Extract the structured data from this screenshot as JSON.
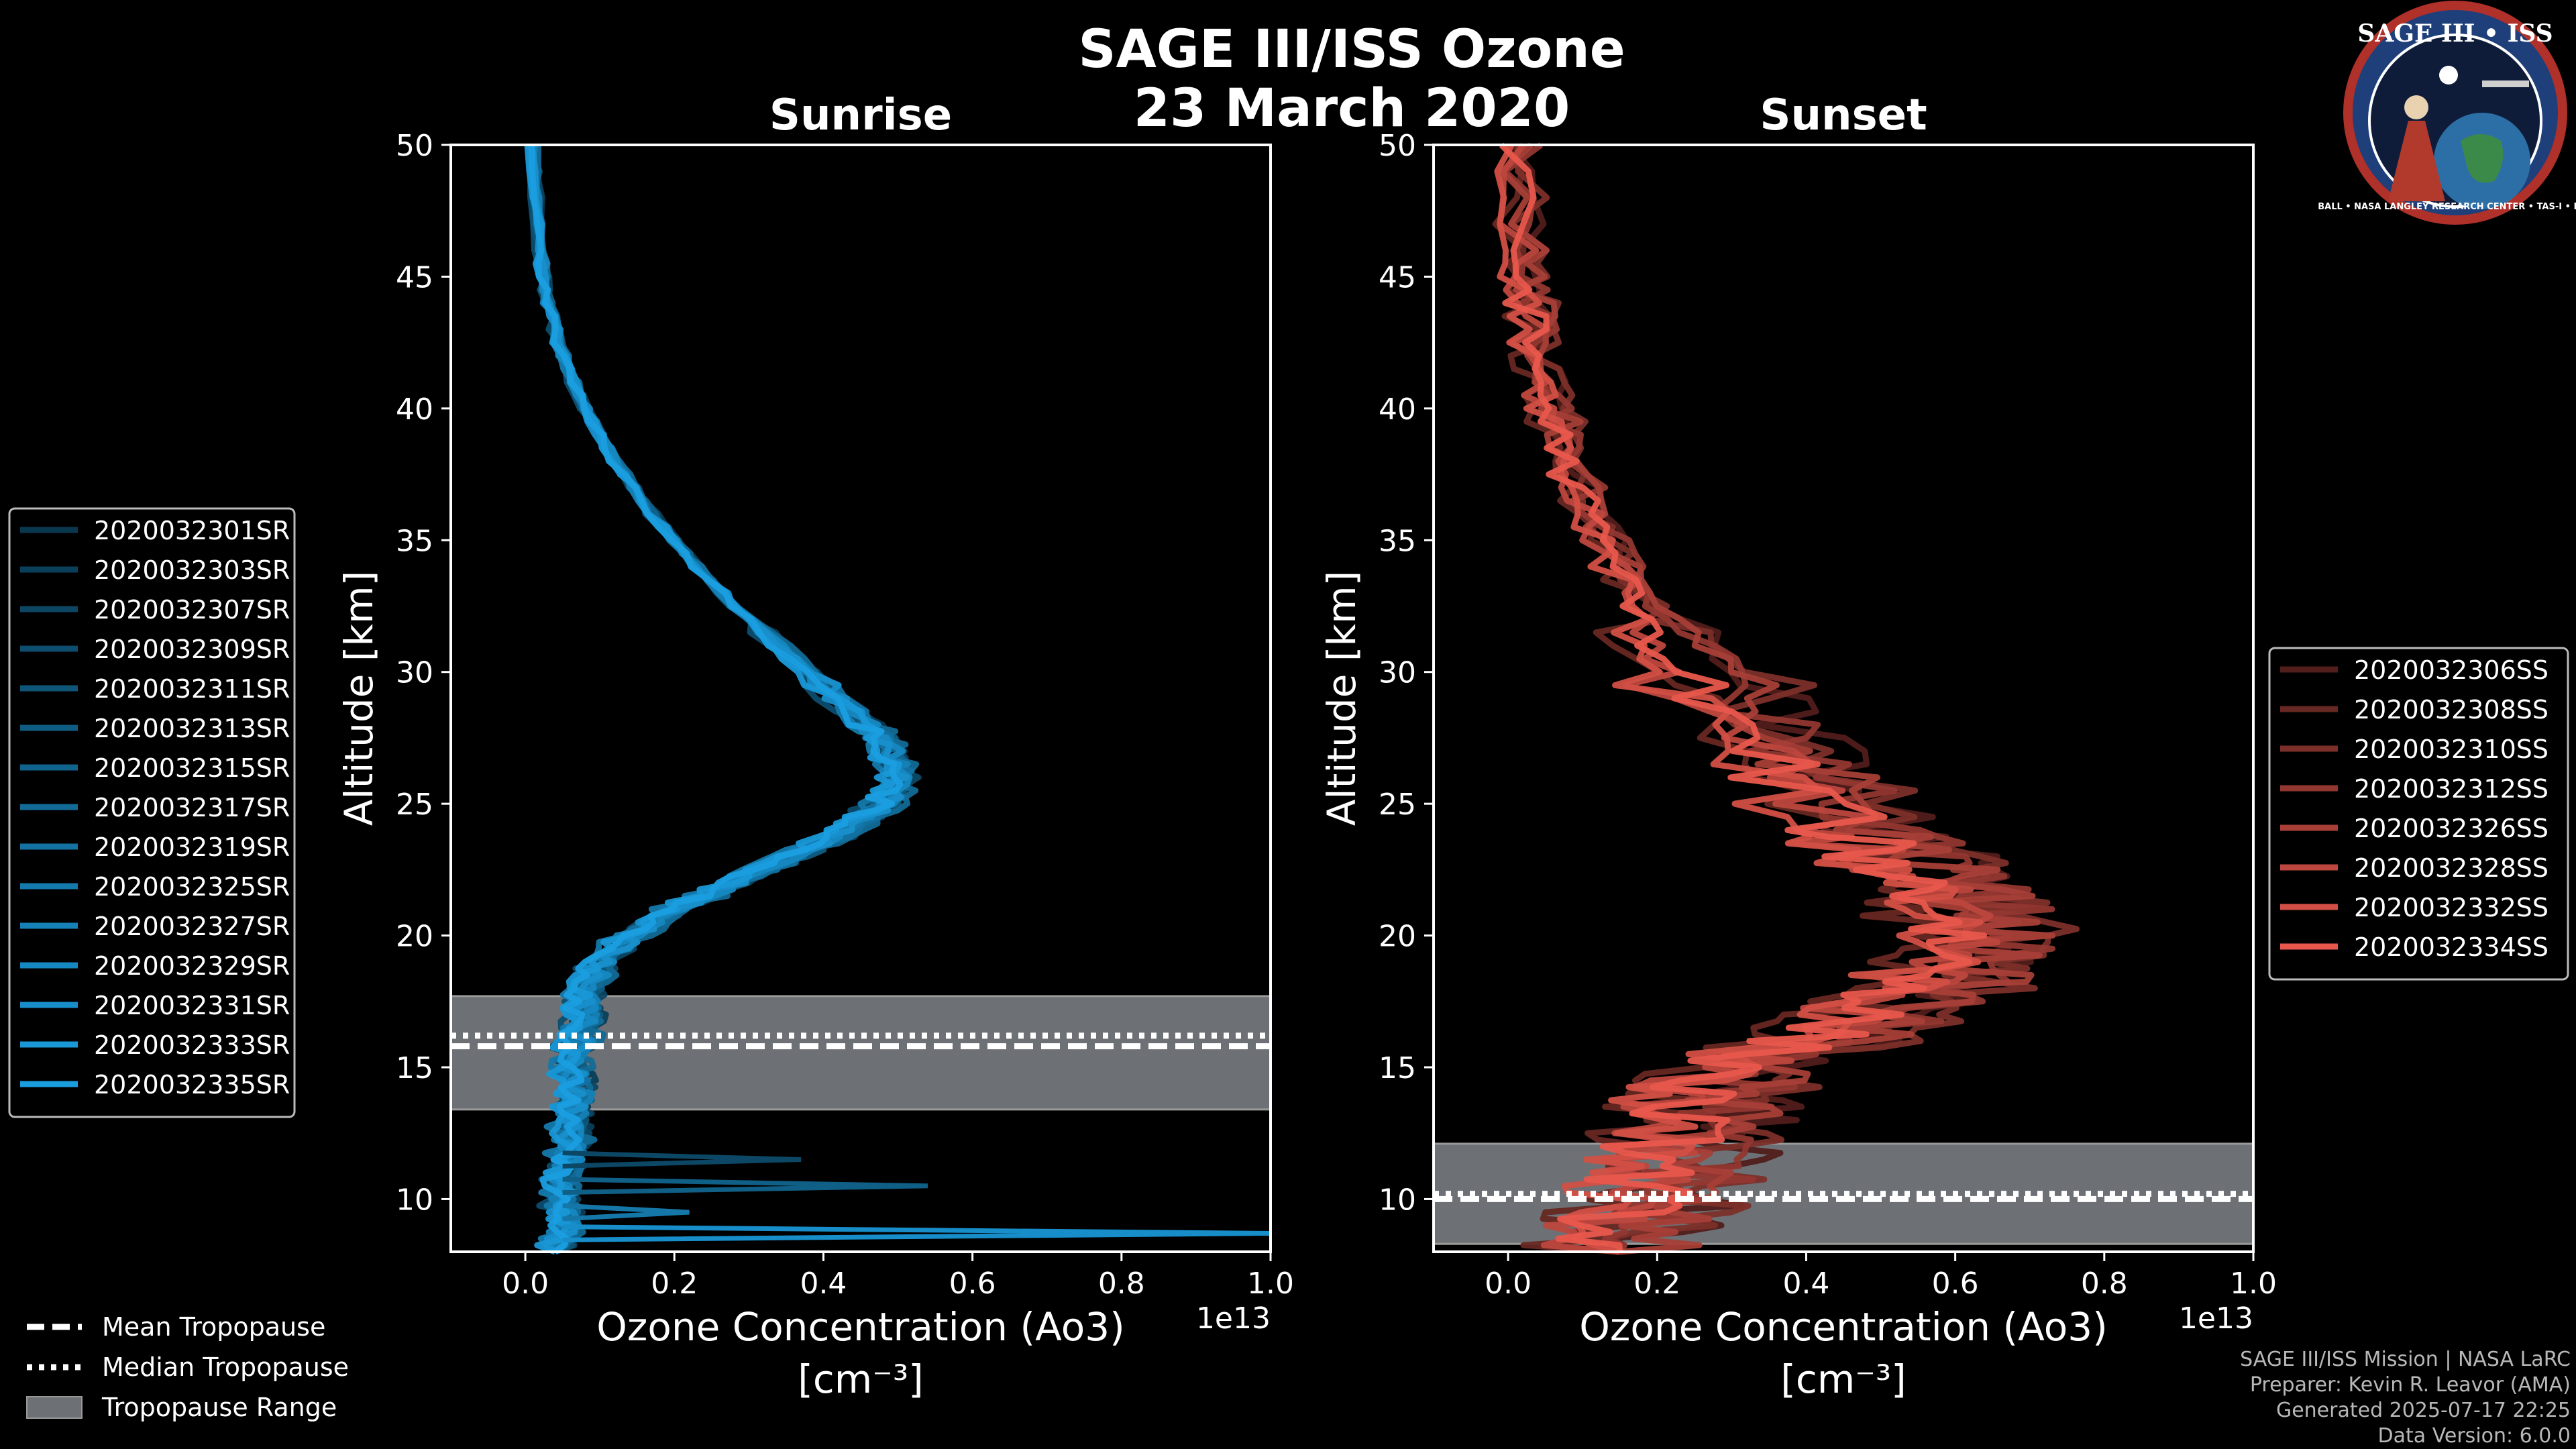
{
  "title": "SAGE III/ISS Ozone",
  "date": "23 March 2020",
  "logo": {
    "text": "SAGE III • ISS",
    "ring_text": "BALL • NASA LANGLEY RESEARCH CENTER • TAS-I • ESA"
  },
  "footer": {
    "line1": "SAGE III/ISS Mission | NASA LaRC",
    "line2": "Preparer: Kevin R. Leavor (AMA)",
    "line3": "Generated 2025-07-17 22:25",
    "line4": "Data Version: 6.0.0"
  },
  "tropopause_legend": {
    "mean": "Mean Tropopause",
    "median": "Median Tropopause",
    "range": "Tropopause Range"
  },
  "colors": {
    "sunrise": "#1a9ee0",
    "sunset": "#e8574c",
    "tropo_fill": "#6d7074",
    "background": "#000000"
  },
  "chart_data": [
    {
      "type": "line",
      "title": "Sunrise",
      "xlabel": "Ozone Concentration (Ao3)",
      "xunit": "[cm⁻³]",
      "xscale": "1e13",
      "ylabel": "Altitude [km]",
      "xlim": [
        -0.1,
        1.0
      ],
      "ylim": [
        8,
        50
      ],
      "xticks": [
        "0.0",
        "0.2",
        "0.4",
        "0.6",
        "0.8",
        "1.0"
      ],
      "yticks": [
        "10",
        "15",
        "20",
        "25",
        "30",
        "35",
        "40",
        "45",
        "50"
      ],
      "legend_position": "left",
      "series_names": [
        "2020032301SR",
        "2020032303SR",
        "2020032307SR",
        "2020032309SR",
        "2020032311SR",
        "2020032313SR",
        "2020032315SR",
        "2020032317SR",
        "2020032319SR",
        "2020032325SR",
        "2020032327SR",
        "2020032329SR",
        "2020032331SR",
        "2020032333SR",
        "2020032335SR"
      ],
      "base_profile": {
        "altitude": [
          50,
          46,
          44,
          42,
          40,
          38,
          36,
          34,
          32,
          30,
          28,
          27,
          26,
          25,
          24,
          23,
          22,
          21,
          20,
          19,
          18,
          17,
          16,
          15,
          14,
          13,
          12,
          11,
          10,
          9,
          8
        ],
        "ozone": [
          0.01,
          0.02,
          0.03,
          0.05,
          0.08,
          0.12,
          0.17,
          0.23,
          0.3,
          0.38,
          0.46,
          0.49,
          0.5,
          0.48,
          0.43,
          0.36,
          0.28,
          0.2,
          0.14,
          0.1,
          0.08,
          0.08,
          0.07,
          0.06,
          0.07,
          0.06,
          0.06,
          0.05,
          0.05,
          0.05,
          0.04
        ]
      },
      "spikes": [
        {
          "altitude": 11.5,
          "ozone": 0.37
        },
        {
          "altitude": 10.5,
          "ozone": 0.54
        },
        {
          "altitude": 9.5,
          "ozone": 0.22
        },
        {
          "altitude": 8.7,
          "ozone": 1.0
        }
      ],
      "tropopause": {
        "mean_km": 15.8,
        "median_km": 16.2,
        "range_km": [
          13.4,
          17.7
        ]
      }
    },
    {
      "type": "line",
      "title": "Sunset",
      "xlabel": "Ozone Concentration (Ao3)",
      "xunit": "[cm⁻³]",
      "xscale": "1e13",
      "ylabel": "Altitude [km]",
      "xlim": [
        -0.1,
        1.0
      ],
      "ylim": [
        8,
        50
      ],
      "xticks": [
        "0.0",
        "0.2",
        "0.4",
        "0.6",
        "0.8",
        "1.0"
      ],
      "yticks": [
        "10",
        "15",
        "20",
        "25",
        "30",
        "35",
        "40",
        "45",
        "50"
      ],
      "legend_position": "right",
      "series_names": [
        "2020032306SS",
        "2020032308SS",
        "2020032310SS",
        "2020032312SS",
        "2020032326SS",
        "2020032328SS",
        "2020032332SS",
        "2020032334SS"
      ],
      "base_profile": {
        "altitude": [
          50,
          46,
          44,
          42,
          40,
          38,
          36,
          34,
          32,
          30,
          28,
          26,
          24,
          23,
          22,
          21,
          20,
          19,
          18,
          17,
          16,
          15,
          14,
          13,
          12,
          11,
          10,
          9,
          8
        ],
        "ozone": [
          0.01,
          0.02,
          0.03,
          0.04,
          0.06,
          0.08,
          0.11,
          0.15,
          0.2,
          0.26,
          0.32,
          0.4,
          0.48,
          0.53,
          0.58,
          0.62,
          0.63,
          0.62,
          0.58,
          0.5,
          0.42,
          0.33,
          0.27,
          0.26,
          0.24,
          0.22,
          0.2,
          0.17,
          0.15
        ]
      },
      "tropopause": {
        "mean_km": 10.0,
        "median_km": 10.2,
        "range_km": [
          8.3,
          12.1
        ]
      }
    }
  ]
}
